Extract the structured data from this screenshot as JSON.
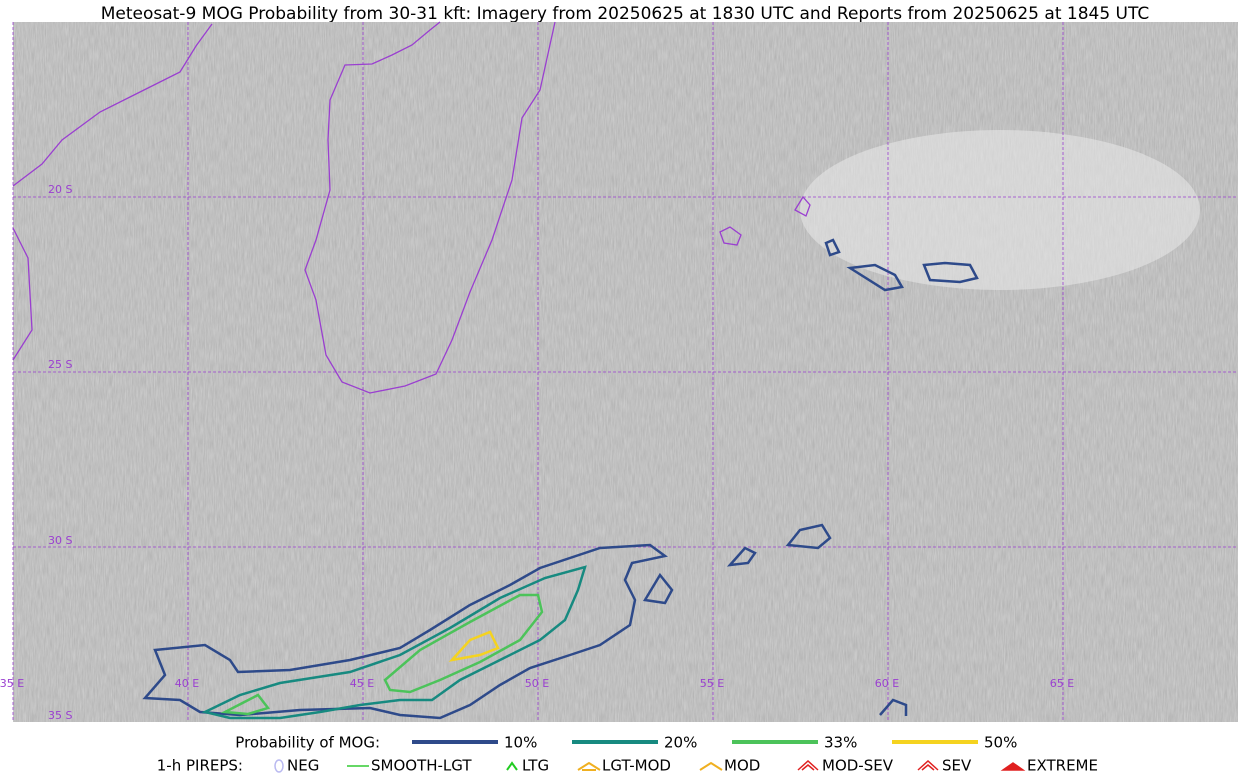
{
  "title": "Meteosat-9 MOG Probability from 30-31 kft: Imagery from 20250625 at 1830 UTC and Reports from 20250625 at 1845 UTC",
  "map": {
    "lat_labels": [
      "20 S",
      "25 S",
      "30 S",
      "35 S"
    ],
    "lon_labels": [
      "35 E",
      "40 E",
      "45 E",
      "50 E",
      "55 E",
      "60 E",
      "65 E"
    ]
  },
  "legend": {
    "probability_title": "Probability of MOG:",
    "probability_levels": [
      {
        "label": "10%",
        "color": "#2e4a8a"
      },
      {
        "label": "20%",
        "color": "#178a80"
      },
      {
        "label": "33%",
        "color": "#4cc35a"
      },
      {
        "label": "50%",
        "color": "#f5d31f"
      }
    ],
    "pireps_title": "1-h PIREPS:",
    "pireps": [
      {
        "label": "NEG",
        "color": "#b9b9f0"
      },
      {
        "label": "SMOOTH-LGT",
        "color": "#33cc33"
      },
      {
        "label": "LTG",
        "color": "#22cc22"
      },
      {
        "label": "LGT-MOD",
        "color": "#f0b020"
      },
      {
        "label": "MOD",
        "color": "#f0b020"
      },
      {
        "label": "MOD-SEV",
        "color": "#e02020"
      },
      {
        "label": "SEV",
        "color": "#e02020"
      },
      {
        "label": "EXTREME",
        "color": "#e02020"
      }
    ]
  }
}
